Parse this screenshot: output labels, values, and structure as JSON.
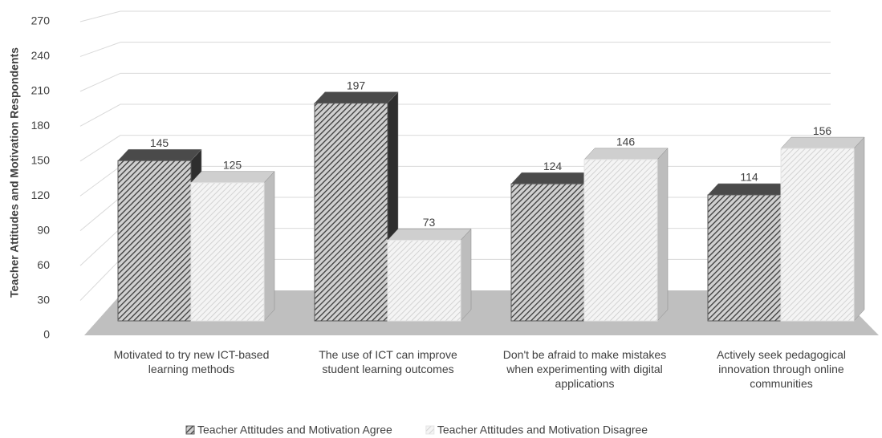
{
  "chart_data": {
    "type": "bar3d",
    "y_label": "Teacher Attitudes and Motivation Respondents",
    "categories": [
      "Motivated to try new ICT-based learning methods",
      "The use of ICT can improve student learning outcomes",
      "Don't be afraid to make mistakes when experimenting with digital applications",
      "Actively seek pedagogical innovation through online communities"
    ],
    "series": [
      {
        "name": "Teacher Attitudes and Motivation Agree",
        "color": "#5a5a5a",
        "values": [
          145,
          197,
          124,
          114
        ]
      },
      {
        "name": "Teacher Attitudes and Motivation Disagree",
        "color": "#e4e4e4",
        "values": [
          125,
          73,
          146,
          156
        ]
      }
    ],
    "ylim": [
      0,
      270
    ],
    "yticks": [
      0,
      30,
      60,
      90,
      120,
      150,
      180,
      210,
      240,
      270
    ],
    "grid": true,
    "legend": "bottom"
  }
}
